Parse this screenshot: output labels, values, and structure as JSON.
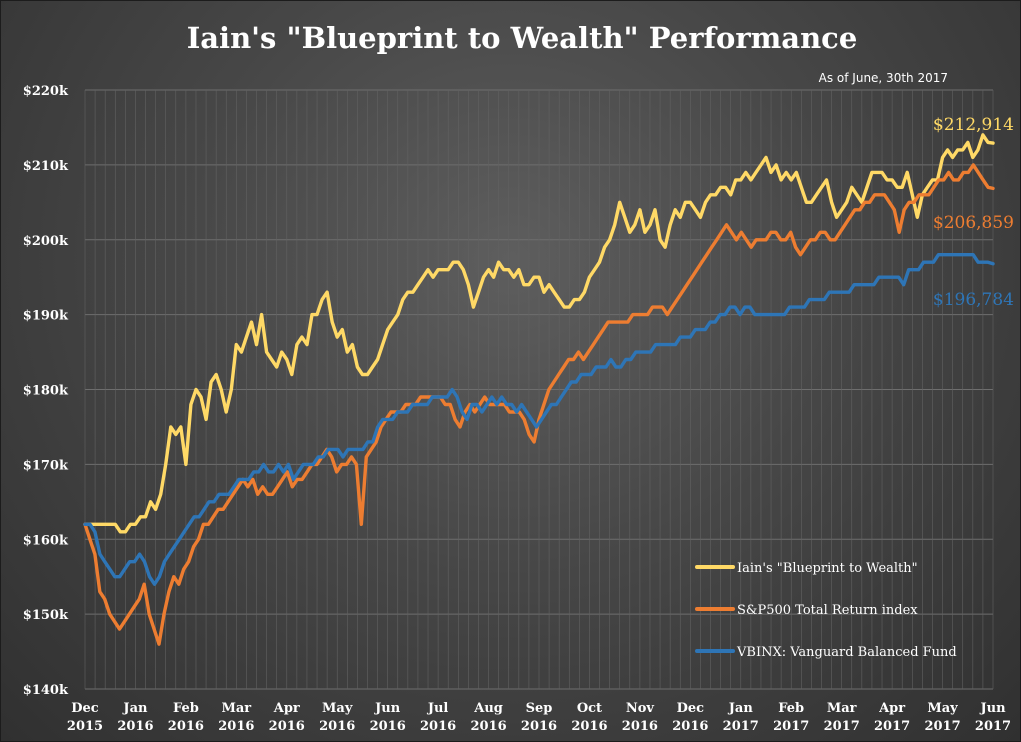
{
  "chart_data": {
    "type": "line",
    "title": "Iain's \"Blueprint to Wealth\" Performance",
    "annotation": "As of June, 30th 2017",
    "ylim": [
      140000,
      220000
    ],
    "y_ticks": [
      {
        "value": 140000,
        "label": "$140k"
      },
      {
        "value": 150000,
        "label": "$150k"
      },
      {
        "value": 160000,
        "label": "$160k"
      },
      {
        "value": 170000,
        "label": "$170k"
      },
      {
        "value": 180000,
        "label": "$180k"
      },
      {
        "value": 190000,
        "label": "$190k"
      },
      {
        "value": 200000,
        "label": "$200k"
      },
      {
        "value": 210000,
        "label": "$210k"
      },
      {
        "value": 220000,
        "label": "$220k"
      }
    ],
    "x_ticks": [
      {
        "month": "Dec",
        "year": "2015"
      },
      {
        "month": "Jan",
        "year": "2016"
      },
      {
        "month": "Feb",
        "year": "2016"
      },
      {
        "month": "Mar",
        "year": "2016"
      },
      {
        "month": "Apr",
        "year": "2016"
      },
      {
        "month": "May",
        "year": "2016"
      },
      {
        "month": "Jun",
        "year": "2016"
      },
      {
        "month": "Jul",
        "year": "2016"
      },
      {
        "month": "Aug",
        "year": "2016"
      },
      {
        "month": "Sep",
        "year": "2016"
      },
      {
        "month": "Oct",
        "year": "2016"
      },
      {
        "month": "Nov",
        "year": "2016"
      },
      {
        "month": "Dec",
        "year": "2016"
      },
      {
        "month": "Jan",
        "year": "2017"
      },
      {
        "month": "Feb",
        "year": "2017"
      },
      {
        "month": "Mar",
        "year": "2017"
      },
      {
        "month": "Apr",
        "year": "2017"
      },
      {
        "month": "May",
        "year": "2017"
      },
      {
        "month": "Jun",
        "year": "2017"
      }
    ],
    "grid": true,
    "legend_position": "bottom-right",
    "series": [
      {
        "name": "Iain's \"Blueprint to Wealth\"",
        "color": "#ffd966",
        "end_label": "$212,914",
        "values": [
          162000,
          162000,
          162000,
          162000,
          162000,
          162000,
          162000,
          161000,
          161000,
          162000,
          162000,
          163000,
          163000,
          165000,
          164000,
          166000,
          170000,
          175000,
          174000,
          175000,
          170000,
          178000,
          180000,
          179000,
          176000,
          181000,
          182000,
          180000,
          177000,
          180000,
          186000,
          185000,
          187000,
          189000,
          186000,
          190000,
          185000,
          184000,
          183000,
          185000,
          184000,
          182000,
          186000,
          187000,
          186000,
          190000,
          190000,
          192000,
          193000,
          189000,
          187000,
          188000,
          185000,
          186000,
          183000,
          182000,
          182000,
          183000,
          184000,
          186000,
          188000,
          189000,
          190000,
          192000,
          193000,
          193000,
          194000,
          195000,
          196000,
          195000,
          196000,
          196000,
          196000,
          197000,
          197000,
          196000,
          194000,
          191000,
          193000,
          195000,
          196000,
          195000,
          197000,
          196000,
          196000,
          195000,
          196000,
          194000,
          194000,
          195000,
          195000,
          193000,
          194000,
          193000,
          192000,
          191000,
          191000,
          192000,
          192000,
          193000,
          195000,
          196000,
          197000,
          199000,
          200000,
          202000,
          205000,
          203000,
          201000,
          202000,
          204000,
          201000,
          202000,
          204000,
          200000,
          199000,
          202000,
          204000,
          203000,
          205000,
          205000,
          204000,
          203000,
          205000,
          206000,
          206000,
          207000,
          207000,
          206000,
          208000,
          208000,
          209000,
          208000,
          209000,
          210000,
          211000,
          209000,
          210000,
          208000,
          209000,
          208000,
          209000,
          207000,
          205000,
          205000,
          206000,
          207000,
          208000,
          205000,
          203000,
          204000,
          205000,
          207000,
          206000,
          205000,
          207000,
          209000,
          209000,
          209000,
          208000,
          208000,
          207000,
          207000,
          209000,
          206000,
          203000,
          206000,
          207000,
          208000,
          208000,
          211000,
          212000,
          211000,
          212000,
          212000,
          213000,
          211000,
          212000,
          214000,
          213000,
          212914
        ],
        "legend_label": "Iain's \"Blueprint to Wealth\""
      },
      {
        "name": "S&P500 Total Return index",
        "color": "#ed7d31",
        "end_label": "$206,859",
        "values": [
          162000,
          160000,
          158000,
          153000,
          152000,
          150000,
          149000,
          148000,
          149000,
          150000,
          151000,
          152000,
          154000,
          150000,
          148000,
          146000,
          150000,
          153000,
          155000,
          154000,
          156000,
          157000,
          159000,
          160000,
          162000,
          162000,
          163000,
          164000,
          164000,
          165000,
          166000,
          167000,
          168000,
          167000,
          168000,
          166000,
          167000,
          166000,
          166000,
          167000,
          168000,
          169000,
          167000,
          168000,
          168000,
          169000,
          170000,
          170000,
          171000,
          172000,
          171000,
          169000,
          170000,
          170000,
          171000,
          170000,
          162000,
          171000,
          172000,
          173000,
          175000,
          176000,
          177000,
          177000,
          177000,
          178000,
          178000,
          178000,
          179000,
          179000,
          179000,
          179000,
          179000,
          178000,
          178000,
          176000,
          175000,
          177000,
          178000,
          177000,
          178000,
          179000,
          178000,
          178000,
          178000,
          178000,
          177000,
          177000,
          177000,
          176000,
          174000,
          173000,
          176000,
          178000,
          180000,
          181000,
          182000,
          183000,
          184000,
          184000,
          185000,
          184000,
          185000,
          186000,
          187000,
          188000,
          189000,
          189000,
          189000,
          189000,
          189000,
          190000,
          190000,
          190000,
          190000,
          191000,
          191000,
          191000,
          190000,
          191000,
          192000,
          193000,
          194000,
          195000,
          196000,
          197000,
          198000,
          199000,
          200000,
          201000,
          202000,
          201000,
          200000,
          201000,
          200000,
          199000,
          200000,
          200000,
          200000,
          201000,
          201000,
          200000,
          200000,
          201000,
          199000,
          198000,
          199000,
          200000,
          200000,
          201000,
          201000,
          200000,
          200000,
          201000,
          202000,
          203000,
          204000,
          204000,
          205000,
          205000,
          206000,
          206000,
          206000,
          205000,
          204000,
          201000,
          204000,
          205000,
          205000,
          206000,
          206000,
          206000,
          207000,
          208000,
          208000,
          209000,
          208000,
          208000,
          209000,
          209000,
          210000,
          209000,
          208000,
          207000,
          206859
        ],
        "legend_label": "S&P500 Total Return index"
      },
      {
        "name": "VBINX: Vanguard Balanced Fund",
        "color": "#2e75b6",
        "end_label": "$196,784",
        "values": [
          162000,
          162000,
          161000,
          158000,
          157000,
          156000,
          155000,
          155000,
          156000,
          157000,
          157000,
          158000,
          157000,
          155000,
          154000,
          155000,
          157000,
          158000,
          159000,
          160000,
          161000,
          162000,
          163000,
          163000,
          164000,
          165000,
          165000,
          166000,
          166000,
          166000,
          167000,
          168000,
          168000,
          168000,
          169000,
          169000,
          170000,
          169000,
          169000,
          170000,
          169000,
          170000,
          168000,
          169000,
          170000,
          170000,
          170000,
          171000,
          171000,
          172000,
          172000,
          172000,
          171000,
          172000,
          172000,
          172000,
          172000,
          173000,
          173000,
          175000,
          176000,
          176000,
          176000,
          177000,
          177000,
          177000,
          178000,
          178000,
          178000,
          178000,
          179000,
          179000,
          179000,
          179000,
          180000,
          179000,
          177000,
          176000,
          178000,
          178000,
          177000,
          178000,
          179000,
          178000,
          179000,
          178000,
          178000,
          177000,
          178000,
          177000,
          176000,
          175000,
          176000,
          177000,
          178000,
          178000,
          179000,
          180000,
          181000,
          181000,
          182000,
          182000,
          182000,
          183000,
          183000,
          183000,
          184000,
          183000,
          183000,
          184000,
          184000,
          185000,
          185000,
          185000,
          185000,
          186000,
          186000,
          186000,
          186000,
          186000,
          187000,
          187000,
          187000,
          188000,
          188000,
          188000,
          189000,
          189000,
          190000,
          190000,
          191000,
          191000,
          190000,
          191000,
          191000,
          190000,
          190000,
          190000,
          190000,
          190000,
          190000,
          190000,
          191000,
          191000,
          191000,
          191000,
          192000,
          192000,
          192000,
          192000,
          193000,
          193000,
          193000,
          193000,
          193000,
          194000,
          194000,
          194000,
          194000,
          194000,
          195000,
          195000,
          195000,
          195000,
          195000,
          194000,
          196000,
          196000,
          196000,
          197000,
          197000,
          197000,
          198000,
          198000,
          198000,
          198000,
          198000,
          198000,
          198000,
          198000,
          197000,
          197000,
          197000,
          196784
        ],
        "legend_label": "VBINX: Vanguard Balanced Fund"
      }
    ]
  }
}
